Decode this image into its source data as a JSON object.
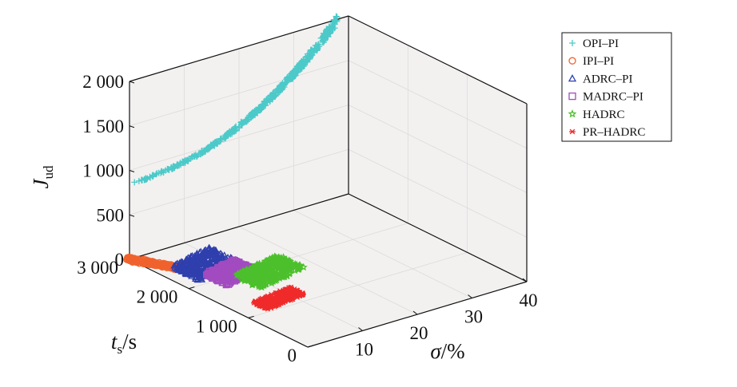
{
  "chart_data": {
    "type": "scatter",
    "projection": "3d",
    "background": "#f3f1f0",
    "grid": true,
    "legend_position": "top-right",
    "axes": {
      "x": {
        "label_main": "σ",
        "label_sub": "",
        "label_unit": "/%",
        "range": [
          0,
          40
        ],
        "ticks": [
          {
            "v": 10,
            "label": "10"
          },
          {
            "v": 20,
            "label": "20"
          },
          {
            "v": 30,
            "label": "30"
          },
          {
            "v": 40,
            "label": "40"
          }
        ]
      },
      "y": {
        "label_main": "t",
        "label_sub": "s",
        "label_unit": "/s",
        "range": [
          0,
          3000
        ],
        "ticks": [
          {
            "v": 0,
            "label": "0"
          },
          {
            "v": 1000,
            "label": "1 000"
          },
          {
            "v": 2000,
            "label": "2 000"
          },
          {
            "v": 3000,
            "label": "3 000"
          }
        ]
      },
      "z": {
        "label_main": "J",
        "label_sub": "ud",
        "label_unit": "",
        "range": [
          0,
          2000
        ],
        "ticks": [
          {
            "v": 0,
            "label": "0"
          },
          {
            "v": 500,
            "label": "500"
          },
          {
            "v": 1000,
            "label": "1 000"
          },
          {
            "v": 1500,
            "label": "1 500"
          },
          {
            "v": 2000,
            "label": "2 000"
          }
        ]
      }
    },
    "series": [
      {
        "name": "OPI–PI",
        "marker": "+",
        "color": "#4cc9c9",
        "sigma_range": [
          0,
          38
        ],
        "ts_range": [
          3000,
          3000
        ],
        "jud_range": [
          850,
          2000
        ]
      },
      {
        "name": "IPI–PI",
        "marker": "circle",
        "color": "#f0622d",
        "sigma_range": [
          0,
          4
        ],
        "ts_range": [
          2450,
          3000
        ],
        "jud_range": [
          0,
          0
        ]
      },
      {
        "name": "ADRC–PI",
        "marker": "triangle",
        "color": "#2f3fad",
        "sigma_range": [
          3,
          12
        ],
        "ts_range": [
          2100,
          2750
        ],
        "jud_range": [
          0,
          0
        ]
      },
      {
        "name": "MADRC–PI",
        "marker": "square",
        "color": "#a24bc0",
        "sigma_range": [
          5,
          12
        ],
        "ts_range": [
          1800,
          2350
        ],
        "jud_range": [
          0,
          0
        ]
      },
      {
        "name": "HADRC",
        "marker": "star",
        "color": "#4cc02c",
        "sigma_range": [
          8,
          18
        ],
        "ts_range": [
          1550,
          2150
        ],
        "jud_range": [
          0,
          0
        ]
      },
      {
        "name": "PR–HADRC",
        "marker": "asterisk",
        "color": "#f02a2a",
        "sigma_range": [
          4,
          12
        ],
        "ts_range": [
          1050,
          1400
        ],
        "jud_range": [
          0,
          0
        ]
      }
    ]
  }
}
